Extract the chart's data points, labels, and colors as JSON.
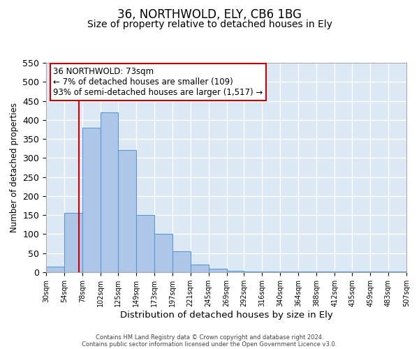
{
  "title": "36, NORTHWOLD, ELY, CB6 1BG",
  "subtitle": "Size of property relative to detached houses in Ely",
  "xlabel": "Distribution of detached houses by size in Ely",
  "ylabel": "Number of detached properties",
  "bin_edges": [
    30,
    54,
    78,
    102,
    125,
    149,
    173,
    197,
    221,
    245,
    269,
    292,
    316,
    340,
    364,
    388,
    412,
    435,
    459,
    483,
    507
  ],
  "bin_counts": [
    15,
    155,
    380,
    420,
    320,
    150,
    100,
    55,
    20,
    10,
    3,
    2,
    2,
    1,
    2,
    1,
    1,
    1,
    1,
    2
  ],
  "bar_color": "#aec6e8",
  "bar_edge_color": "#5b9bd5",
  "background_color": "#dde8f5",
  "grid_color": "#ffffff",
  "vline_x": 73,
  "vline_color": "#cc0000",
  "annotation_text": "36 NORTHWOLD: 73sqm\n← 7% of detached houses are smaller (109)\n93% of semi-detached houses are larger (1,517) →",
  "annotation_box_color": "#ffffff",
  "annotation_box_edge_color": "#cc0000",
  "ylim": [
    0,
    550
  ],
  "yticks": [
    0,
    50,
    100,
    150,
    200,
    250,
    300,
    350,
    400,
    450,
    500,
    550
  ],
  "tick_labels": [
    "30sqm",
    "54sqm",
    "78sqm",
    "102sqm",
    "125sqm",
    "149sqm",
    "173sqm",
    "197sqm",
    "221sqm",
    "245sqm",
    "269sqm",
    "292sqm",
    "316sqm",
    "340sqm",
    "364sqm",
    "388sqm",
    "412sqm",
    "435sqm",
    "459sqm",
    "483sqm",
    "507sqm"
  ],
  "footer_line1": "Contains HM Land Registry data © Crown copyright and database right 2024.",
  "footer_line2": "Contains public sector information licensed under the Open Government Licence v3.0.",
  "title_fontsize": 12,
  "subtitle_fontsize": 10,
  "xlabel_fontsize": 9.5,
  "ylabel_fontsize": 8.5,
  "tick_fontsize": 7,
  "annotation_fontsize": 8.5,
  "footer_fontsize": 6
}
